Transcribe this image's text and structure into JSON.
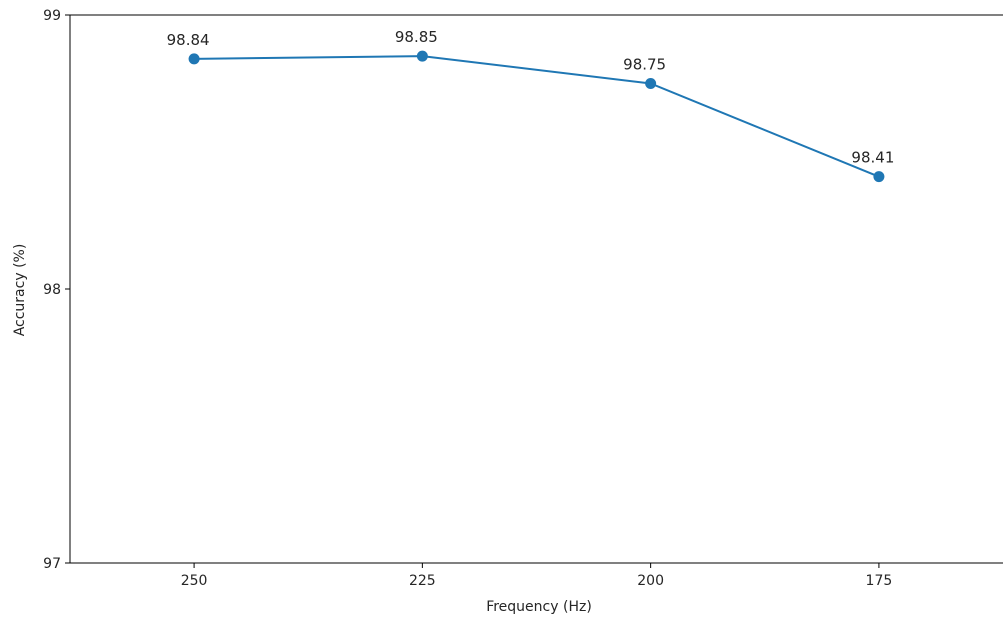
{
  "chart_data": {
    "type": "line",
    "categories": [
      "250",
      "225",
      "200",
      "175"
    ],
    "series": [
      {
        "values": [
          98.84,
          98.85,
          98.75,
          98.41
        ]
      }
    ],
    "data_labels": [
      "98.84",
      "98.85",
      "98.75",
      "98.41"
    ],
    "xlabel": "Frequency (Hz)",
    "ylabel": "Accuracy (%)",
    "ylim": [
      97,
      99
    ],
    "yticks": [
      "97",
      "98",
      "99"
    ],
    "grid": false,
    "line_color": "#1f77b4",
    "marker": "circle"
  }
}
